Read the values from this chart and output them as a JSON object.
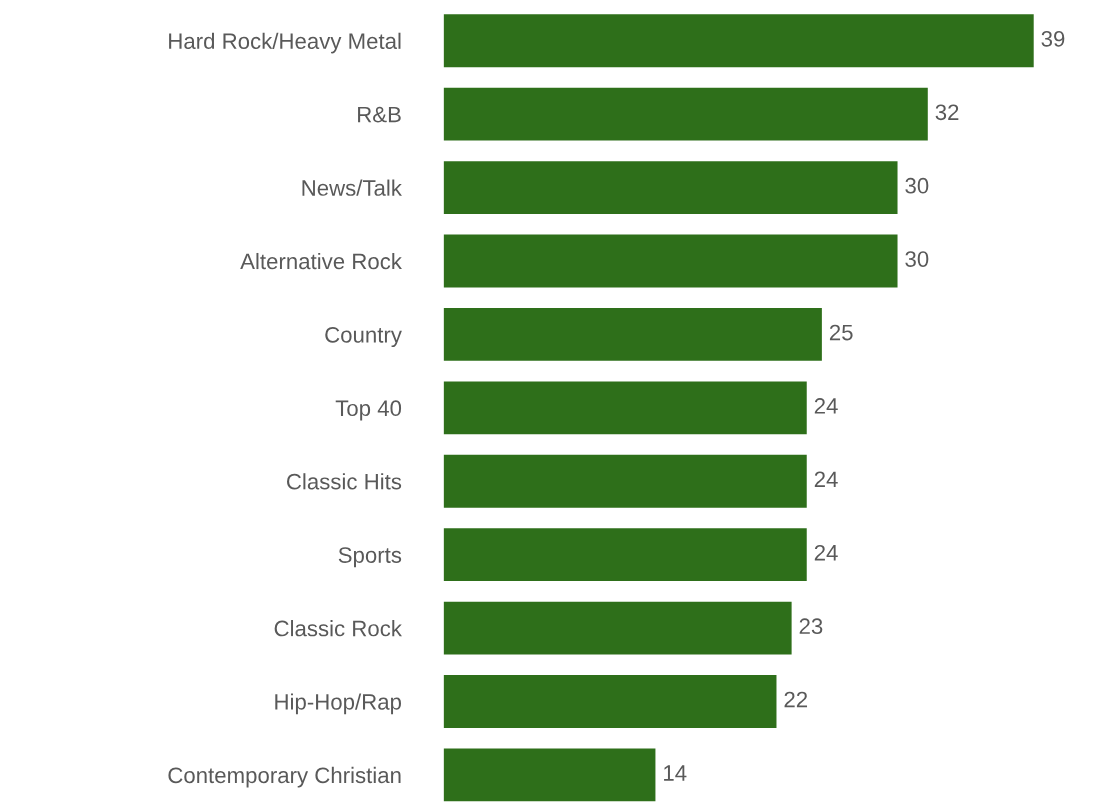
{
  "chart_data": {
    "type": "bar",
    "orientation": "horizontal",
    "categories": [
      "Hard Rock/Heavy Metal",
      "R&B",
      "News/Talk",
      "Alternative Rock",
      "Country",
      "Top 40",
      "Classic Hits",
      "Sports",
      "Classic Rock",
      "Hip-Hop/Rap",
      "Contemporary Christian"
    ],
    "values": [
      39,
      32,
      30,
      30,
      25,
      24,
      24,
      24,
      23,
      22,
      14
    ],
    "color": "#2e6f1a",
    "data_labels": true,
    "tick_labels": "y",
    "grid": false,
    "legend": false
  }
}
